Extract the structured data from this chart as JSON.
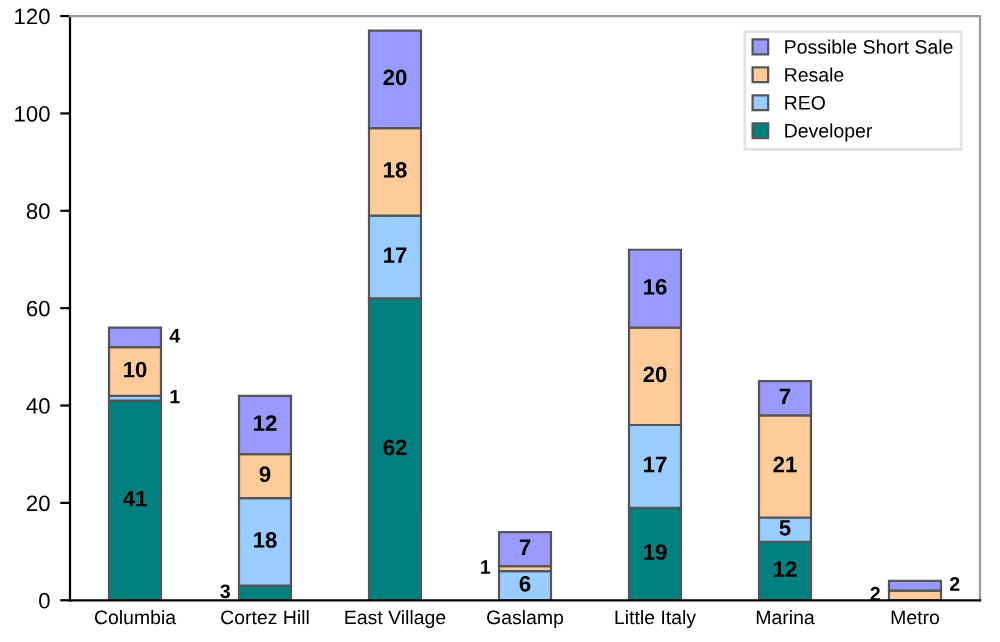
{
  "chart_data": {
    "type": "bar",
    "stacked": true,
    "categories": [
      "Columbia",
      "Cortez Hill",
      "East Village",
      "Gaslamp",
      "Little Italy",
      "Marina",
      "Metro"
    ],
    "series": [
      {
        "name": "Developer",
        "color": "#008080",
        "values": [
          41,
          3,
          62,
          0,
          19,
          12,
          0
        ],
        "value_labels": [
          "41",
          "3",
          "62",
          null,
          "19",
          "12",
          null
        ]
      },
      {
        "name": "REO",
        "color": "#99ccff",
        "values": [
          1,
          18,
          17,
          6,
          17,
          5,
          0
        ],
        "value_labels": [
          "1",
          "18",
          "17",
          "6",
          "17",
          "5",
          null
        ]
      },
      {
        "name": "Resale",
        "color": "#ffcc99",
        "values": [
          10,
          9,
          18,
          1,
          20,
          21,
          2
        ],
        "value_labels": [
          "10",
          "9",
          "18",
          "1",
          "20",
          "21",
          "2"
        ]
      },
      {
        "name": "Possible Short Sale",
        "color": "#9999ff",
        "values": [
          4,
          12,
          20,
          7,
          16,
          7,
          2
        ],
        "value_labels": [
          "4",
          "12",
          "20",
          "7",
          "16",
          "7",
          "2"
        ]
      }
    ],
    "ylim": [
      0,
      120
    ],
    "yticks": [
      0,
      20,
      40,
      60,
      80,
      100,
      120
    ],
    "grid": false,
    "legend": "top right"
  }
}
